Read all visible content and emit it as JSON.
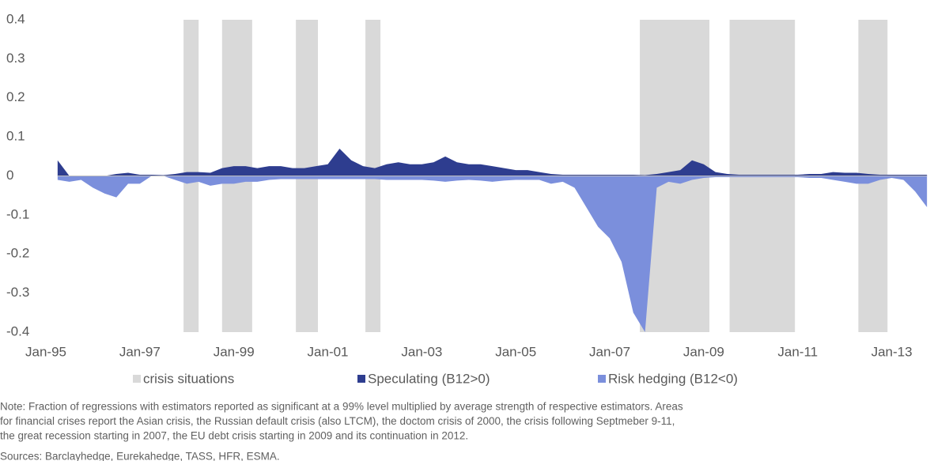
{
  "chart_data": {
    "type": "area",
    "xticks": [
      {
        "value": 1995,
        "label": "Jan-95"
      },
      {
        "value": 1997,
        "label": "Jan-97"
      },
      {
        "value": 1999,
        "label": "Jan-99"
      },
      {
        "value": 2001,
        "label": "Jan-01"
      },
      {
        "value": 2003,
        "label": "Jan-03"
      },
      {
        "value": 2005,
        "label": "Jan-05"
      },
      {
        "value": 2007,
        "label": "Jan-07"
      },
      {
        "value": 2009,
        "label": "Jan-09"
      },
      {
        "value": 2011,
        "label": "Jan-11"
      },
      {
        "value": 2013,
        "label": "Jan-13"
      }
    ],
    "xlim": [
      1995,
      2014
    ],
    "ylim": [
      -0.4,
      0.4
    ],
    "yticks": [
      0.4,
      0.3,
      0.2,
      0.1,
      0,
      -0.1,
      -0.2,
      -0.3,
      -0.4
    ],
    "x": [
      1995.25,
      1995.5,
      1995.75,
      1996,
      1996.25,
      1996.5,
      1996.75,
      1997,
      1997.25,
      1997.5,
      1997.75,
      1998,
      1998.25,
      1998.5,
      1998.75,
      1999,
      1999.25,
      1999.5,
      1999.75,
      2000,
      2000.25,
      2000.5,
      2000.75,
      2001,
      2001.25,
      2001.5,
      2001.75,
      2002,
      2002.25,
      2002.5,
      2002.75,
      2003,
      2003.25,
      2003.5,
      2003.75,
      2004,
      2004.25,
      2004.5,
      2004.75,
      2005,
      2005.25,
      2005.5,
      2005.75,
      2006,
      2006.25,
      2006.5,
      2006.75,
      2007,
      2007.25,
      2007.5,
      2007.75,
      2008,
      2008.25,
      2008.5,
      2008.75,
      2009,
      2009.25,
      2009.5,
      2009.75,
      2010,
      2010.25,
      2010.5,
      2010.75,
      2011,
      2011.25,
      2011.5,
      2011.75,
      2012,
      2012.25,
      2012.5,
      2012.75,
      2013,
      2013.25,
      2013.5,
      2013.75
    ],
    "crises": {
      "name": "crisis situations",
      "color": "#d9d9d9",
      "spans": [
        [
          1997.93,
          1998.25
        ],
        [
          1998.75,
          1999.39
        ],
        [
          2000.32,
          2000.79
        ],
        [
          2001.8,
          2002.12
        ],
        [
          2007.64,
          2009.12
        ],
        [
          2009.55,
          2010.94
        ],
        [
          2012.29,
          2012.91
        ]
      ]
    },
    "series": [
      {
        "name": "Speculating (B12>0)",
        "color": "#2e3d8f",
        "values": [
          0.04,
          0,
          0,
          0,
          0,
          0.005,
          0.008,
          0.003,
          0.003,
          0.002,
          0.005,
          0.01,
          0.01,
          0.008,
          0.02,
          0.025,
          0.025,
          0.02,
          0.025,
          0.025,
          0.02,
          0.02,
          0.025,
          0.03,
          0.07,
          0.04,
          0.025,
          0.02,
          0.03,
          0.035,
          0.03,
          0.03,
          0.035,
          0.05,
          0.035,
          0.03,
          0.03,
          0.025,
          0.02,
          0.015,
          0.015,
          0.01,
          0.005,
          0.003,
          0.003,
          0.003,
          0.003,
          0.003,
          0.003,
          0.003,
          0.002,
          0.005,
          0.01,
          0.015,
          0.04,
          0.03,
          0.01,
          0.005,
          0.003,
          0.003,
          0.003,
          0.003,
          0.003,
          0.003,
          0.005,
          0.005,
          0.01,
          0.008,
          0.008,
          0.005,
          0.003,
          0.003,
          0.003,
          0.003,
          0.003
        ]
      },
      {
        "name": "Risk hedging (B12<0)",
        "color": "#7b8fdc",
        "values": [
          -0.01,
          -0.015,
          -0.01,
          -0.03,
          -0.045,
          -0.055,
          -0.02,
          -0.02,
          0,
          0,
          -0.01,
          -0.02,
          -0.015,
          -0.025,
          -0.02,
          -0.02,
          -0.015,
          -0.015,
          -0.01,
          -0.008,
          -0.008,
          -0.008,
          -0.008,
          -0.008,
          -0.008,
          -0.008,
          -0.008,
          -0.008,
          -0.01,
          -0.01,
          -0.01,
          -0.01,
          -0.012,
          -0.015,
          -0.012,
          -0.01,
          -0.012,
          -0.015,
          -0.012,
          -0.01,
          -0.01,
          -0.01,
          -0.02,
          -0.015,
          -0.03,
          -0.08,
          -0.13,
          -0.16,
          -0.22,
          -0.35,
          -0.4,
          -0.03,
          -0.015,
          -0.02,
          -0.01,
          -0.005,
          -0.003,
          -0.003,
          -0.003,
          -0.003,
          -0.003,
          -0.003,
          -0.003,
          -0.003,
          -0.005,
          -0.005,
          -0.01,
          -0.015,
          -0.02,
          -0.02,
          -0.01,
          -0.005,
          -0.01,
          -0.04,
          -0.08
        ]
      }
    ],
    "note": [
      "Note: Fraction of regressions with estimators reported as significant at a 99% level multiplied by average strength of respective estimators. Areas",
      "for financial crises report the Asian crisis, the Russian default crisis (also LTCM), the doctom crisis of 2000, the crisis following Septmeber 9-11,",
      "the great recession starting in 2007, the EU debt crisis starting in 2009 and its continuation in 2012."
    ],
    "source": "Sources: Barclayhedge, Eurekahedge, TASS, HFR, ESMA."
  }
}
